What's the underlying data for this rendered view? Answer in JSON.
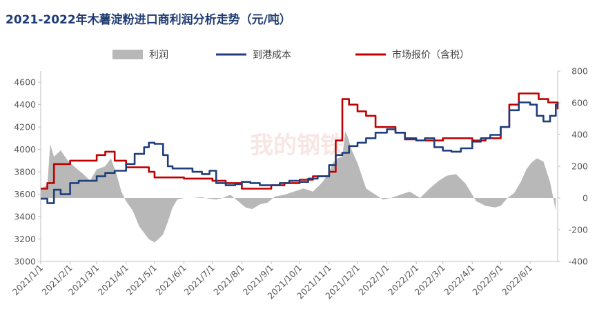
{
  "chart_data": {
    "type": "line",
    "title": "2021-2022年木薯淀粉进口商利润分析走势（元/吨）",
    "legend": {
      "placement": "top",
      "entries": [
        "利润",
        "到港成本",
        "市场报价（含税）"
      ]
    },
    "x_ticks": [
      "2021/1/1",
      "2021/2/1",
      "2021/3/1",
      "2021/4/1",
      "2021/5/1",
      "2021/6/1",
      "2021/7/1",
      "2021/8/1",
      "2021/9/1",
      "2021/10/1",
      "2021/11/1",
      "2021/12/1",
      "2022/1/1",
      "2022/2/1",
      "2022/3/1",
      "2022/4/1",
      "2022/5/1",
      "2022/6/1"
    ],
    "x_range": [
      "2021/1/1",
      "2022/6/30"
    ],
    "y_left": {
      "ticks": [
        3000,
        3200,
        3400,
        3600,
        3800,
        4000,
        4200,
        4400,
        4600
      ],
      "range": [
        3000,
        4700
      ]
    },
    "y_right": {
      "ticks": [
        -400,
        -200,
        0,
        200,
        400,
        600,
        800
      ],
      "range": [
        -400,
        800
      ]
    },
    "grid": false,
    "colors": {
      "profit": "#b8b8b8",
      "cost": "#1f3f7a",
      "price": "#c00000",
      "title": "#1f3b73"
    },
    "series": [
      {
        "name": "利润",
        "kind": "area",
        "axis": "right",
        "x": [
          "2021/1/1",
          "2021/1/8",
          "2021/1/11",
          "2021/1/15",
          "2021/1/22",
          "2021/1/29",
          "2021/2/5",
          "2021/2/15",
          "2021/2/22",
          "2021/3/1",
          "2021/3/10",
          "2021/3/16",
          "2021/3/22",
          "2021/3/27",
          "2021/4/1",
          "2021/4/8",
          "2021/4/15",
          "2021/4/20",
          "2021/4/25",
          "2021/5/1",
          "2021/5/5",
          "2021/5/10",
          "2021/5/15",
          "2021/5/20",
          "2021/5/25",
          "2021/6/1",
          "2021/6/10",
          "2021/6/20",
          "2021/6/28",
          "2021/7/5",
          "2021/7/12",
          "2021/7/20",
          "2021/7/28",
          "2021/8/5",
          "2021/8/12",
          "2021/8/20",
          "2021/8/28",
          "2021/9/5",
          "2021/9/15",
          "2021/9/25",
          "2021/10/5",
          "2021/10/15",
          "2021/10/25",
          "2021/11/1",
          "2021/11/5",
          "2021/11/10",
          "2021/11/15",
          "2021/11/18",
          "2021/11/21",
          "2021/11/25",
          "2021/12/1",
          "2021/12/10",
          "2021/12/20",
          "2021/12/28",
          "2022/1/5",
          "2022/1/15",
          "2022/1/25",
          "2022/2/5",
          "2022/2/15",
          "2022/2/25",
          "2022/3/5",
          "2022/3/15",
          "2022/3/25",
          "2022/4/5",
          "2022/4/15",
          "2022/4/25",
          "2022/5/1",
          "2022/5/8",
          "2022/5/15",
          "2022/5/22",
          "2022/5/28",
          "2022/6/2",
          "2022/6/8",
          "2022/6/15",
          "2022/6/22",
          "2022/6/28"
        ],
        "values": [
          60,
          80,
          340,
          260,
          300,
          240,
          200,
          150,
          110,
          180,
          200,
          250,
          150,
          40,
          -20,
          -80,
          -180,
          -220,
          -260,
          -280,
          -260,
          -230,
          -150,
          -60,
          -10,
          0,
          0,
          5,
          -5,
          -10,
          0,
          20,
          -20,
          -60,
          -70,
          -40,
          -30,
          10,
          20,
          40,
          60,
          40,
          100,
          160,
          220,
          250,
          260,
          420,
          380,
          300,
          220,
          60,
          20,
          -10,
          0,
          20,
          40,
          0,
          60,
          110,
          140,
          150,
          90,
          -20,
          -50,
          -60,
          -50,
          0,
          30,
          100,
          180,
          220,
          250,
          230,
          100,
          -80
        ]
      },
      {
        "name": "到港成本",
        "kind": "line",
        "axis": "left",
        "x": [
          "2021/1/1",
          "2021/1/8",
          "2021/1/15",
          "2021/1/22",
          "2021/2/1",
          "2021/2/10",
          "2021/2/20",
          "2021/3/1",
          "2021/3/10",
          "2021/3/20",
          "2021/4/1",
          "2021/4/10",
          "2021/4/20",
          "2021/4/25",
          "2021/5/1",
          "2021/5/10",
          "2021/5/15",
          "2021/5/20",
          "2021/6/1",
          "2021/6/10",
          "2021/6/20",
          "2021/6/28",
          "2021/7/5",
          "2021/7/15",
          "2021/7/25",
          "2021/8/1",
          "2021/8/10",
          "2021/8/20",
          "2021/9/1",
          "2021/9/10",
          "2021/9/20",
          "2021/10/1",
          "2021/10/10",
          "2021/10/20",
          "2021/11/1",
          "2021/11/8",
          "2021/11/15",
          "2021/11/22",
          "2021/12/1",
          "2021/12/10",
          "2021/12/20",
          "2022/1/1",
          "2022/1/10",
          "2022/1/20",
          "2022/2/1",
          "2022/2/10",
          "2022/2/20",
          "2022/3/1",
          "2022/3/10",
          "2022/3/20",
          "2022/4/1",
          "2022/4/10",
          "2022/4/20",
          "2022/5/1",
          "2022/5/10",
          "2022/5/20",
          "2022/6/1",
          "2022/6/8",
          "2022/6/15",
          "2022/6/22",
          "2022/6/28",
          "2022/6/30"
        ],
        "values": [
          3560,
          3520,
          3640,
          3600,
          3700,
          3720,
          3720,
          3760,
          3790,
          3810,
          3870,
          3960,
          4020,
          4060,
          4050,
          3950,
          3850,
          3830,
          3830,
          3800,
          3780,
          3810,
          3700,
          3680,
          3690,
          3710,
          3700,
          3680,
          3680,
          3700,
          3720,
          3710,
          3740,
          3760,
          3860,
          3950,
          3970,
          4030,
          4060,
          4100,
          4150,
          4180,
          4150,
          4100,
          4080,
          4100,
          4020,
          3990,
          3980,
          4010,
          4070,
          4100,
          4130,
          4200,
          4350,
          4420,
          4400,
          4300,
          4250,
          4300,
          4400,
          4420
        ]
      },
      {
        "name": "市场报价（含税）",
        "kind": "line",
        "axis": "left",
        "x": [
          "2021/1/1",
          "2021/1/8",
          "2021/1/15",
          "2021/2/1",
          "2021/2/15",
          "2021/3/1",
          "2021/3/10",
          "2021/3/20",
          "2021/4/1",
          "2021/4/15",
          "2021/4/25",
          "2021/5/1",
          "2021/5/15",
          "2021/6/1",
          "2021/6/15",
          "2021/7/1",
          "2021/7/15",
          "2021/8/1",
          "2021/8/15",
          "2021/9/1",
          "2021/9/15",
          "2021/10/1",
          "2021/10/15",
          "2021/11/1",
          "2021/11/8",
          "2021/11/15",
          "2021/11/22",
          "2021/12/1",
          "2021/12/10",
          "2021/12/20",
          "2022/1/1",
          "2022/1/10",
          "2022/1/20",
          "2022/2/1",
          "2022/2/15",
          "2022/3/1",
          "2022/3/15",
          "2022/4/1",
          "2022/4/15",
          "2022/5/1",
          "2022/5/10",
          "2022/5/20",
          "2022/6/1",
          "2022/6/10",
          "2022/6/20",
          "2022/6/30"
        ],
        "values": [
          3650,
          3700,
          3870,
          3900,
          3900,
          3950,
          3980,
          3900,
          3840,
          3840,
          3800,
          3750,
          3750,
          3740,
          3740,
          3720,
          3700,
          3650,
          3650,
          3680,
          3700,
          3730,
          3760,
          3800,
          4080,
          4450,
          4400,
          4340,
          4300,
          4200,
          4200,
          4150,
          4090,
          4080,
          4080,
          4100,
          4100,
          4080,
          4100,
          4200,
          4400,
          4500,
          4500,
          4450,
          4420,
          4360
        ]
      }
    ]
  },
  "watermark": "我的钢铁"
}
